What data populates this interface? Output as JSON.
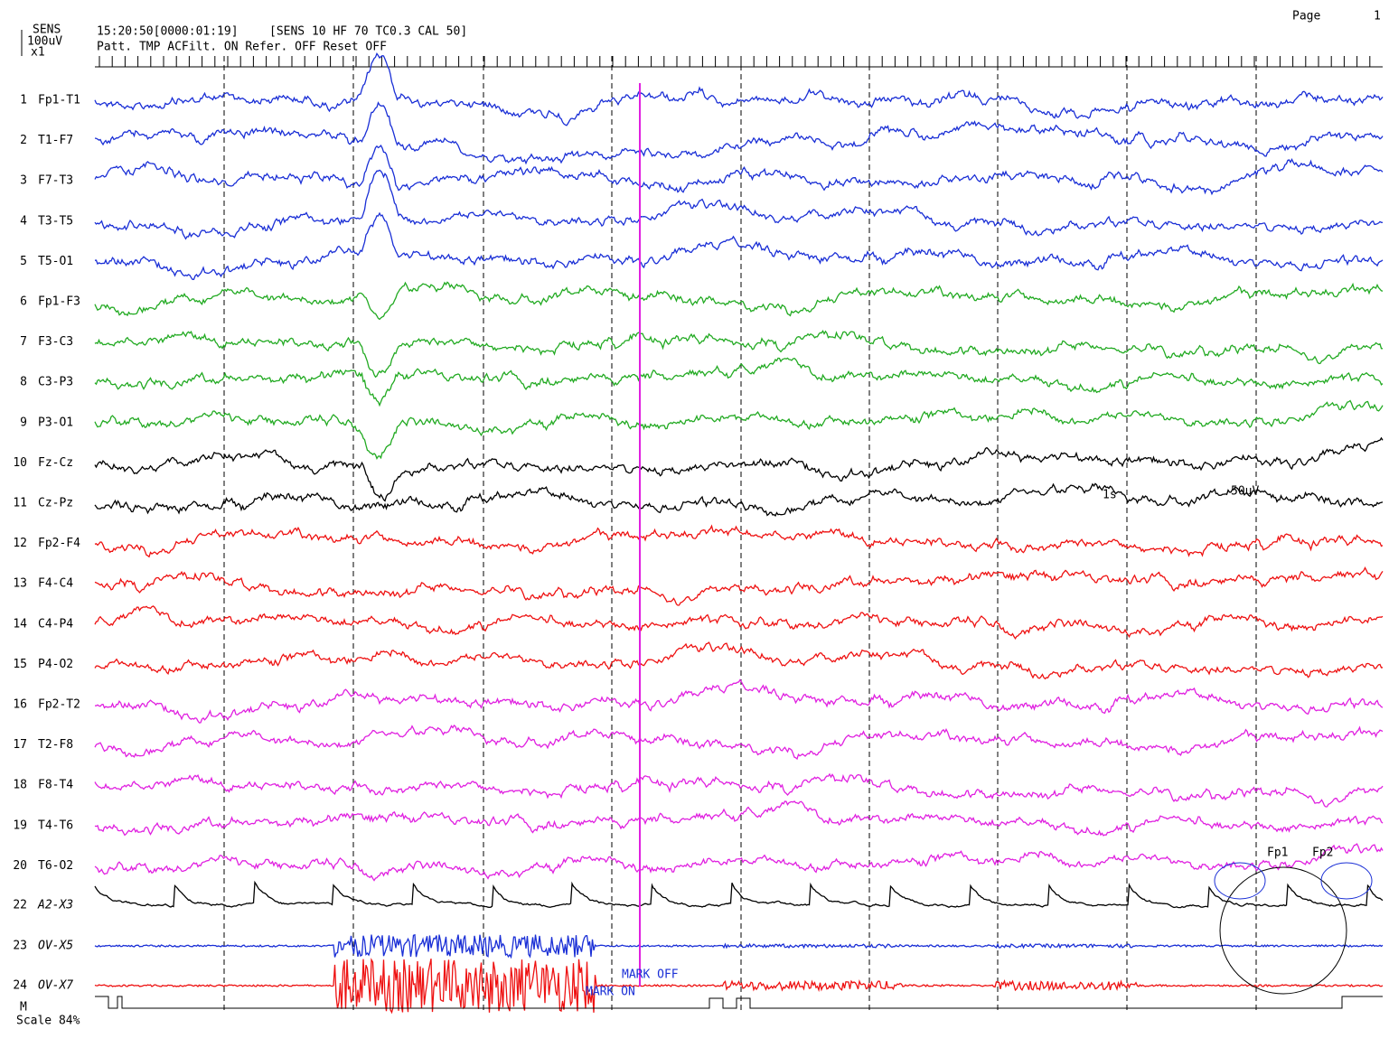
{
  "header": {
    "sens": "SENS",
    "sensitivity": "100uV",
    "gain": "x1",
    "time": "15:20:50[0000:01:19]",
    "settings": "[SENS 10  HF 70  TC0.3  CAL 50]",
    "status": "Patt. TMP ACFilt. ON  Refer. OFF  Reset OFF",
    "page_label": "Page",
    "page_number": "1"
  },
  "channels": [
    {
      "number": "1",
      "name": "Fp1-T1"
    },
    {
      "number": "2",
      "name": "T1-F7"
    },
    {
      "number": "3",
      "name": "F7-T3"
    },
    {
      "number": "4",
      "name": "T3-T5"
    },
    {
      "number": "5",
      "name": "T5-O1"
    },
    {
      "number": "6",
      "name": "Fp1-F3"
    },
    {
      "number": "7",
      "name": "F3-C3"
    },
    {
      "number": "8",
      "name": "C3-P3"
    },
    {
      "number": "9",
      "name": "P3-O1"
    },
    {
      "number": "10",
      "name": "Fz-Cz"
    },
    {
      "number": "11",
      "name": "Cz-Pz"
    },
    {
      "number": "12",
      "name": "Fp2-F4"
    },
    {
      "number": "13",
      "name": "F4-C4"
    },
    {
      "number": "14",
      "name": "C4-P4"
    },
    {
      "number": "15",
      "name": "P4-O2"
    },
    {
      "number": "16",
      "name": "Fp2-T2"
    },
    {
      "number": "17",
      "name": "T2-F8"
    },
    {
      "number": "18",
      "name": "F8-T4"
    },
    {
      "number": "19",
      "name": "T4-T6"
    },
    {
      "number": "20",
      "name": "T6-O2"
    },
    {
      "number": "22",
      "name": "A2-X3"
    },
    {
      "number": "23",
      "name": "OV-X5"
    },
    {
      "number": "24",
      "name": "OV-X7"
    }
  ],
  "annotations": {
    "time_scale": "1s",
    "amp_scale": "50uV",
    "mark_off": "MARK OFF",
    "mark_on": "MARK ON"
  },
  "footer": {
    "marker": "M",
    "scale": "Scale 84%"
  },
  "montage": {
    "labels": [
      "Fp1",
      "Fp2"
    ]
  }
}
